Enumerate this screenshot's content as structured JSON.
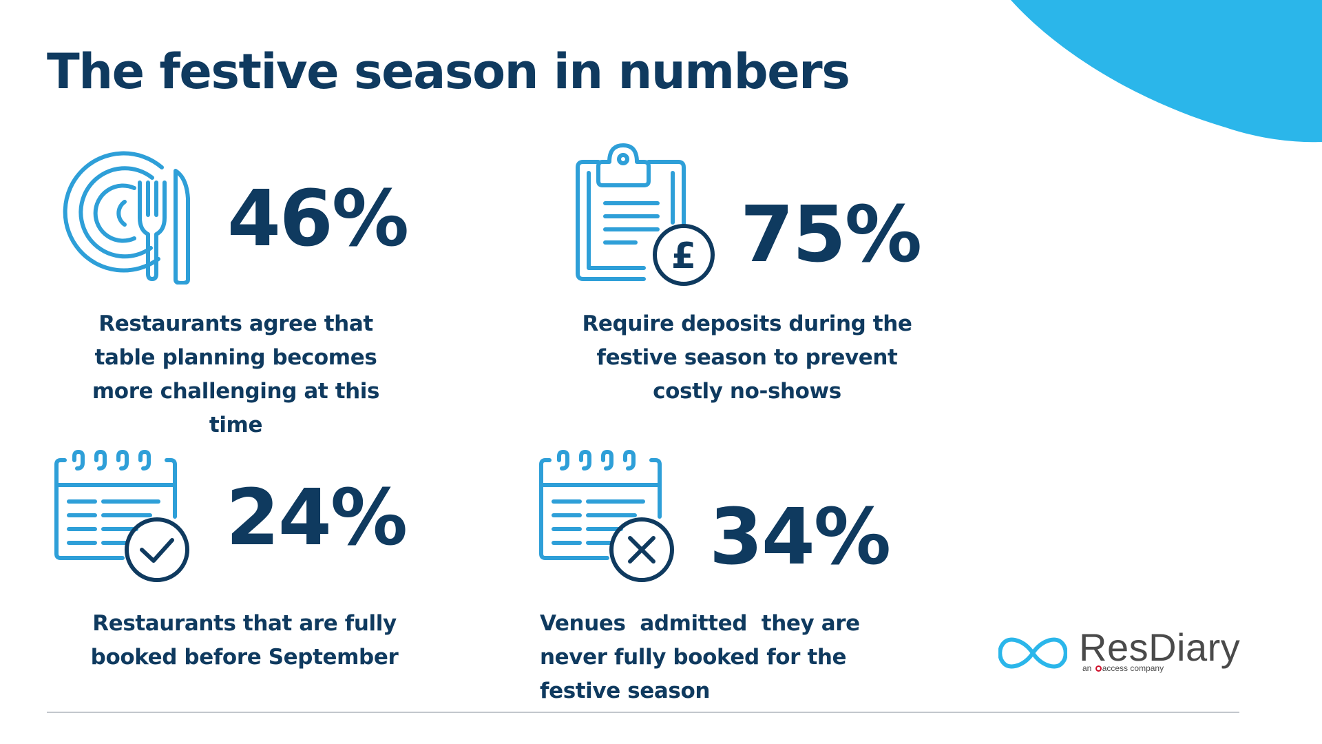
{
  "title": "The festive season in numbers",
  "colors": {
    "navy": "#0f3a5f",
    "light_blue": "#2e9fd8",
    "sky_blue": "#2bb6ea",
    "logo_gray": "#4a4a4a",
    "logo_red": "#d0112b"
  },
  "stats": [
    {
      "value": "46%",
      "description": "Restaurants agree that table planning becomes more challenging at this time",
      "icon": "plate-cutlery-icon"
    },
    {
      "value": "75%",
      "description": "Require deposits during the festive season to prevent costly no-shows",
      "icon": "clipboard-pound-icon"
    },
    {
      "value": "24%",
      "description": "Restaurants that are fully booked before September",
      "icon": "calendar-check-icon"
    },
    {
      "value": "34%",
      "description": "Venues  admitted  they are never fully booked for the festive season",
      "icon": "calendar-cross-icon"
    }
  ],
  "logo": {
    "name": "ResDiary",
    "tagline_prefix": "an",
    "tagline_brand": "access",
    "tagline_suffix": "company"
  }
}
